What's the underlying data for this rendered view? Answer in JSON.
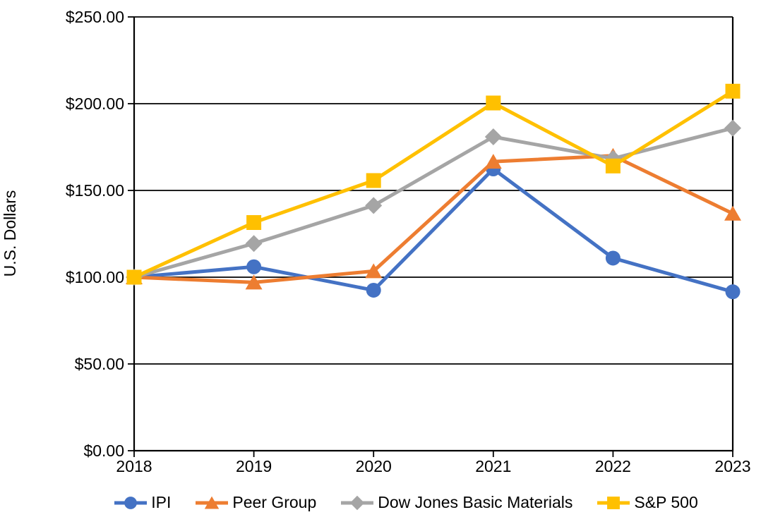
{
  "chart_data": {
    "type": "line",
    "ylabel": "U.S. Dollars",
    "categories": [
      "2018",
      "2019",
      "2020",
      "2021",
      "2022",
      "2023"
    ],
    "y_axis": {
      "min": 0,
      "max": 250,
      "step": 50,
      "tick_labels": [
        "$0.00",
        "$50.00",
        "$100.00",
        "$150.00",
        "$200.00",
        "$250.00"
      ]
    },
    "grid": "horizontal-major-on",
    "legend_position": "bottom",
    "plot_border": "left-right-top-bottom",
    "axis_color": "#000000",
    "gridline_color": "#000000",
    "background_color": "#ffffff",
    "series": [
      {
        "name": "IPI",
        "marker": "circle",
        "color": "#4472C4",
        "values": [
          100.0,
          106.0,
          92.5,
          162.4,
          111.0,
          91.6
        ]
      },
      {
        "name": "Peer Group",
        "marker": "triangle",
        "color": "#ED7D31",
        "values": [
          100.0,
          97.0,
          103.5,
          166.6,
          170.0,
          136.7
        ]
      },
      {
        "name": "Dow Jones Basic Materials",
        "marker": "diamond",
        "color": "#A5A5A5",
        "values": [
          100.0,
          119.4,
          141.3,
          180.9,
          168.4,
          185.9
        ]
      },
      {
        "name": "S&P 500",
        "marker": "square",
        "color": "#FFC000",
        "values": [
          100.0,
          131.5,
          155.7,
          200.4,
          164.1,
          207.2
        ]
      }
    ]
  }
}
